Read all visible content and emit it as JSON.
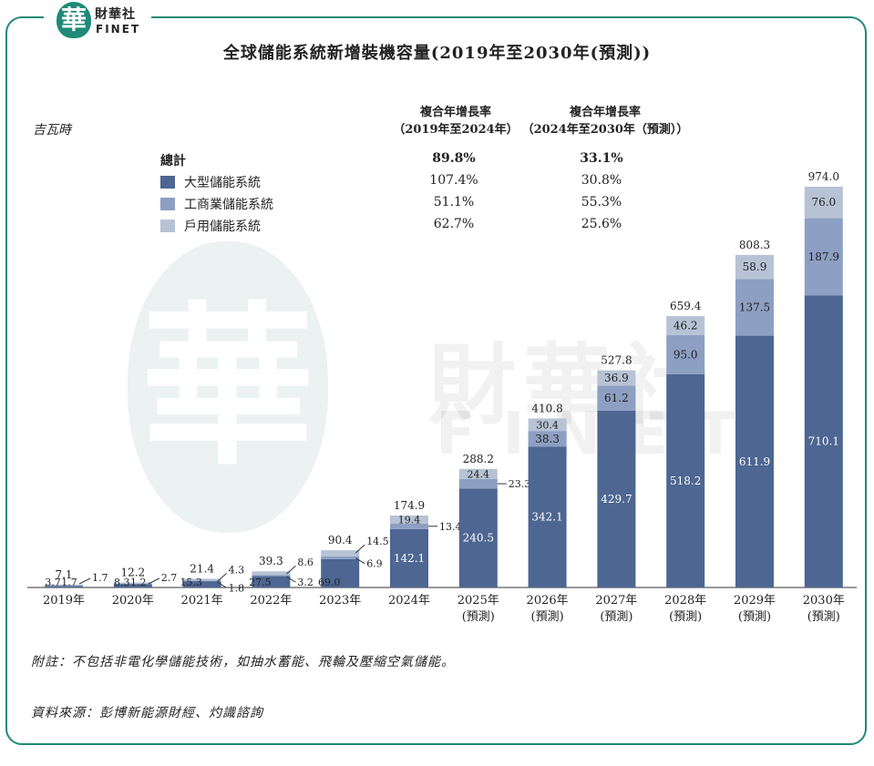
{
  "brand": {
    "seal": "華",
    "name_cn": "財華社",
    "name_en": "FINET"
  },
  "watermark": {
    "seal": "華",
    "cn": "財華社",
    "en": "FINET"
  },
  "colors": {
    "large": "#4d6692",
    "commercial": "#8d9fc2",
    "household": "#b7c3d5",
    "frame": "#1f8a78"
  },
  "cagr": {
    "header1": [
      "複合年增長率",
      "（2019年至2024年）"
    ],
    "header2": [
      "複合年增長率",
      "（2024年至2030年（預測））"
    ],
    "rows": [
      {
        "label": "總計",
        "bold": true,
        "v1": "89.8%",
        "v2": "33.1%"
      },
      {
        "label": "大型儲能系統",
        "v1": "107.4%",
        "v2": "30.8%"
      },
      {
        "label": "工商業儲能系統",
        "v1": "51.1%",
        "v2": "55.3%"
      },
      {
        "label": "戶用儲能系統",
        "v1": "62.7%",
        "v2": "25.6%"
      }
    ]
  },
  "note": "附註：不包括非電化學儲能技術，如抽水蓄能、飛輪及壓縮空氣儲能。",
  "source": "資料來源：彭博新能源財經、灼識諮詢",
  "chart_data": {
    "type": "bar",
    "stacked": true,
    "title": "全球儲能系統新增裝機容量(2019年至2030年(預測))",
    "ylabel": "吉瓦時",
    "categories": [
      "2019年",
      "2020年",
      "2021年",
      "2022年",
      "2023年",
      "2024年",
      "2025年",
      "2026年",
      "2027年",
      "2028年",
      "2029年",
      "2030年"
    ],
    "category_sub": [
      "",
      "",
      "",
      "",
      "",
      "",
      "(預測)",
      "(預測)",
      "(預測)",
      "(預測)",
      "(預測)",
      "(預測)"
    ],
    "series": [
      {
        "name": "大型儲能系統",
        "values": [
          3.7,
          8.3,
          15.3,
          27.5,
          69.0,
          142.1,
          240.5,
          342.1,
          429.7,
          518.2,
          611.9,
          710.1
        ]
      },
      {
        "name": "工商業儲能系統",
        "values": [
          1.7,
          1.2,
          1.8,
          3.2,
          6.9,
          13.4,
          23.3,
          38.3,
          61.2,
          95.0,
          137.5,
          187.9
        ]
      },
      {
        "name": "戶用儲能系統",
        "values": [
          1.7,
          2.7,
          4.3,
          8.6,
          14.5,
          19.4,
          24.4,
          30.4,
          36.9,
          46.2,
          58.9,
          76.0
        ]
      }
    ],
    "totals": [
      7.1,
      12.2,
      21.4,
      39.3,
      90.4,
      174.9,
      288.2,
      410.8,
      527.8,
      659.4,
      808.3,
      974.0
    ],
    "labels": {
      "large": [
        "3.7",
        "8.3",
        "15.3",
        "27.5",
        "69.0",
        "142.1",
        "240.5",
        "342.1",
        "429.7",
        "518.2",
        "611.9",
        "710.1"
      ],
      "commercial": [
        "1.7",
        "1.2",
        "1.8",
        "3.2",
        "6.9",
        "13.4",
        "23.3",
        "38.3",
        "61.2",
        "95.0",
        "137.5",
        "187.9"
      ],
      "household": [
        "1.7",
        "2.7",
        "4.3",
        "8.6",
        "14.5",
        "19.4",
        "24.4",
        "30.4",
        "36.9",
        "46.2",
        "58.9",
        "76.0"
      ],
      "totals": [
        "7.1",
        "12.2",
        "21.4",
        "39.3",
        "90.4",
        "174.9",
        "288.2",
        "410.8",
        "527.8",
        "659.4",
        "808.3",
        "974.0"
      ]
    },
    "ylim": [
      0,
      974
    ],
    "grid": false,
    "legend": "top-left"
  }
}
